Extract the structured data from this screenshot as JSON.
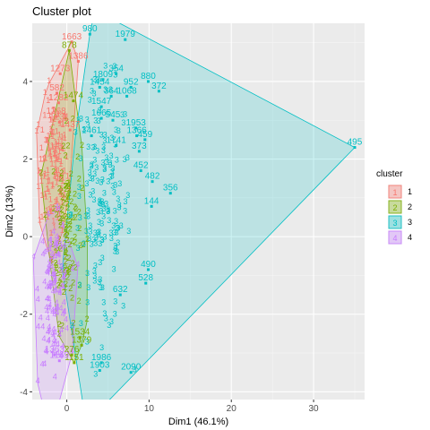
{
  "chart_data": {
    "type": "scatter",
    "title": "Cluster plot",
    "xlabel": "Dim1 (46.1%)",
    "ylabel": "Dim2 (13%)",
    "xlim": [
      -4.2,
      36.2
    ],
    "ylim": [
      -4.2,
      5.5
    ],
    "x_ticks": [
      0,
      10,
      20,
      30
    ],
    "y_ticks": [
      -4,
      -2,
      0,
      2,
      4
    ],
    "grid": true,
    "legend_title": "cluster",
    "legend_position": "right",
    "series": [
      {
        "name": "1",
        "color": "#F8766D",
        "labels": [
          {
            "x": 0.6,
            "y": 5.02,
            "t": "1663"
          },
          {
            "x": 1.4,
            "y": 4.52,
            "t": "1386"
          },
          {
            "x": -0.8,
            "y": 4.2,
            "t": "1273"
          },
          {
            "x": -1.2,
            "y": 3.7,
            "t": "582"
          },
          {
            "x": -1.0,
            "y": 3.45,
            "t": "1282"
          },
          {
            "x": -1.3,
            "y": 3.1,
            "t": "1268"
          },
          {
            "x": -0.9,
            "y": 2.95,
            "t": "1231"
          },
          {
            "x": 0.4,
            "y": 2.75,
            "t": "1437"
          }
        ]
      },
      {
        "name": "2",
        "color": "#7CAE00",
        "labels": [
          {
            "x": 0.3,
            "y": 4.8,
            "t": "878"
          },
          {
            "x": 0.8,
            "y": 3.5,
            "t": "1474"
          },
          {
            "x": 1.6,
            "y": -2.6,
            "t": "1534"
          },
          {
            "x": 1.8,
            "y": -2.8,
            "t": "1379"
          },
          {
            "x": 0.6,
            "y": -3.05,
            "t": "276"
          },
          {
            "x": 0.9,
            "y": -3.25,
            "t": "1151"
          }
        ]
      },
      {
        "name": "3",
        "color": "#00BFC4",
        "labels": [
          {
            "x": 2.8,
            "y": 5.22,
            "t": "980"
          },
          {
            "x": 7.1,
            "y": 5.08,
            "t": "1979"
          },
          {
            "x": 9.9,
            "y": 4.0,
            "t": "880"
          },
          {
            "x": 11.2,
            "y": 3.75,
            "t": "372"
          },
          {
            "x": 6.0,
            "y": 4.2,
            "t": "354"
          },
          {
            "x": 4.4,
            "y": 4.05,
            "t": "1809"
          },
          {
            "x": 4.0,
            "y": 3.85,
            "t": "1454"
          },
          {
            "x": 7.8,
            "y": 3.85,
            "t": "952"
          },
          {
            "x": 5.4,
            "y": 3.62,
            "t": "364"
          },
          {
            "x": 7.3,
            "y": 3.62,
            "t": "1068"
          },
          {
            "x": 4.2,
            "y": 3.35,
            "t": "1547"
          },
          {
            "x": 4.2,
            "y": 3.05,
            "t": "1665"
          },
          {
            "x": 5.6,
            "y": 3.0,
            "t": "545"
          },
          {
            "x": 8.4,
            "y": 2.8,
            "t": "1953"
          },
          {
            "x": 9.5,
            "y": 2.5,
            "t": "459"
          },
          {
            "x": 8.5,
            "y": 2.6,
            "t": "1366"
          },
          {
            "x": 3.0,
            "y": 2.6,
            "t": "1461"
          },
          {
            "x": 6.0,
            "y": 2.35,
            "t": "1741"
          },
          {
            "x": 8.8,
            "y": 2.2,
            "t": "373"
          },
          {
            "x": 9.0,
            "y": 1.7,
            "t": "452"
          },
          {
            "x": 10.4,
            "y": 1.42,
            "t": "482"
          },
          {
            "x": 12.6,
            "y": 1.12,
            "t": "356"
          },
          {
            "x": 10.3,
            "y": 0.78,
            "t": "144"
          },
          {
            "x": 9.9,
            "y": -0.85,
            "t": "490"
          },
          {
            "x": 9.6,
            "y": -1.2,
            "t": "528"
          },
          {
            "x": 6.5,
            "y": -1.5,
            "t": "632"
          },
          {
            "x": 4.2,
            "y": -3.25,
            "t": "1986"
          },
          {
            "x": 4.0,
            "y": -3.45,
            "t": "1903"
          },
          {
            "x": 7.8,
            "y": -3.5,
            "t": "2090"
          },
          {
            "x": 35.0,
            "y": 2.3,
            "t": "495"
          }
        ]
      },
      {
        "name": "4",
        "color": "#C77CFF",
        "labels": [
          {
            "x": -1.5,
            "y": -3.05,
            "t": "1363"
          },
          {
            "x": -0.9,
            "y": -3.2,
            "t": "1169"
          }
        ]
      }
    ]
  }
}
